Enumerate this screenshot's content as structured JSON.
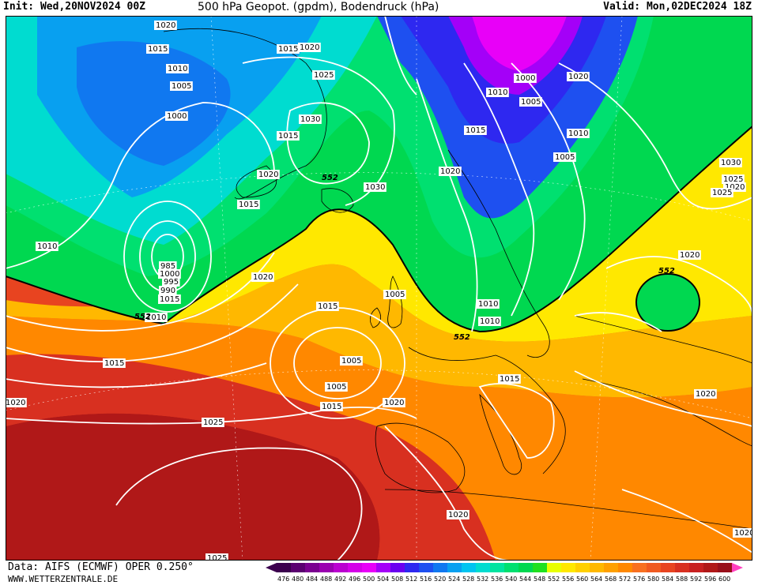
{
  "header": {
    "init": "Init: Wed,20NOV2024 00Z",
    "title": "500 hPa Geopot. (gpdm), Bodendruck (hPa)",
    "valid": "Valid: Mon,02DEC2024 18Z"
  },
  "footer": {
    "data_source": "Data: AIFS (ECMWF) OPER 0.250°",
    "website": "WWW.WETTERZENTRALE.DE"
  },
  "scale": {
    "values": [
      "476",
      "480",
      "484",
      "488",
      "492",
      "496",
      "500",
      "504",
      "508",
      "512",
      "516",
      "520",
      "524",
      "528",
      "532",
      "536",
      "540",
      "544",
      "548",
      "552",
      "556",
      "560",
      "564",
      "568",
      "572",
      "576",
      "580",
      "584",
      "588",
      "592",
      "596",
      "600"
    ],
    "colors": [
      "#3b004e",
      "#5a0070",
      "#7a0090",
      "#9a00b0",
      "#ba00d0",
      "#d400e8",
      "#e800f8",
      "#a400f8",
      "#6a00f0",
      "#2e28f0",
      "#1e50f0",
      "#1078f0",
      "#08a0f0",
      "#00c4f0",
      "#00dcd0",
      "#00e4a0",
      "#00e070",
      "#00d850",
      "#20e020",
      "#e8ff00",
      "#ffe800",
      "#ffd000",
      "#ffb800",
      "#ffa000",
      "#ff8800",
      "#f87020",
      "#f05a20",
      "#e84420",
      "#d83020",
      "#c82020",
      "#b01818",
      "#980f1a"
    ],
    "arrow_left_color": "#3b004e",
    "arrow_right_color": "#ff40c0"
  },
  "map_labels": {
    "isobars": [
      "1020",
      "1015",
      "1015",
      "1020",
      "1010",
      "1005",
      "1025",
      "1000",
      "1030",
      "1015",
      "1020",
      "1010",
      "1000",
      "1005",
      "1015",
      "1010",
      "1020",
      "1005",
      "1030",
      "1025",
      "1020",
      "1015",
      "1030",
      "1020",
      "1025",
      "1020",
      "1005",
      "1000",
      "995",
      "985",
      "990",
      "1010",
      "1010",
      "1020",
      "1015",
      "1015",
      "1005",
      "1010",
      "1015",
      "1020",
      "1015",
      "1020",
      "1025",
      "1025",
      "1020",
      "1020",
      "1020",
      "1010",
      "1015",
      "1005"
    ],
    "height_552": "552"
  },
  "colors": {
    "cold_core": "#e800f8",
    "deep_blue": "#2e28f0",
    "cyan": "#00c4f0",
    "green": "#00d850",
    "yellow": "#ffe800",
    "orange": "#ff8800",
    "red": "#c82020"
  }
}
